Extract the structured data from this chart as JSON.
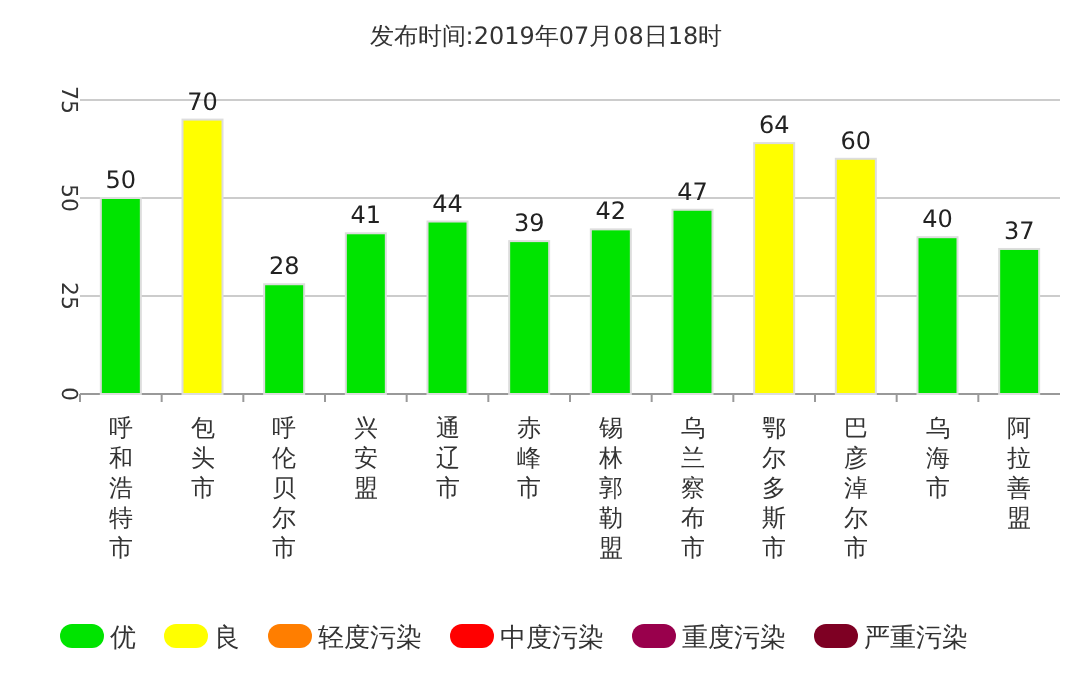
{
  "chart_data": {
    "type": "bar",
    "title": "发布时间:2019年07月08日18时",
    "categories": [
      "呼和浩特市",
      "包头市",
      "呼伦贝尔市",
      "兴安盟",
      "通辽市",
      "赤峰市",
      "锡林郭勒盟",
      "乌兰察布市",
      "鄂尔多斯市",
      "巴彦淖尔市",
      "乌海市",
      "阿拉善盟"
    ],
    "series": [
      {
        "name": "优",
        "color": "#00e400",
        "values": [
          50,
          null,
          28,
          41,
          44,
          39,
          42,
          47,
          null,
          null,
          40,
          37
        ]
      },
      {
        "name": "良",
        "color": "#ffff00",
        "values": [
          null,
          70,
          null,
          null,
          null,
          null,
          null,
          null,
          64,
          60,
          null,
          null
        ]
      },
      {
        "name": "轻度污染",
        "color": "#ff7e00",
        "values": [
          null,
          null,
          null,
          null,
          null,
          null,
          null,
          null,
          null,
          null,
          null,
          null
        ]
      },
      {
        "name": "中度污染",
        "color": "#ff0000",
        "values": [
          null,
          null,
          null,
          null,
          null,
          null,
          null,
          null,
          null,
          null,
          null,
          null
        ]
      },
      {
        "name": "重度污染",
        "color": "#99004c",
        "values": [
          null,
          null,
          null,
          null,
          null,
          null,
          null,
          null,
          null,
          null,
          null,
          null
        ]
      },
      {
        "name": "严重污染",
        "color": "#7e0023",
        "values": [
          null,
          null,
          null,
          null,
          null,
          null,
          null,
          null,
          null,
          null,
          null,
          null
        ]
      }
    ],
    "stacked": true,
    "ylim": [
      0,
      75
    ],
    "yticks": [
      0,
      25,
      50,
      75
    ],
    "grid": "y",
    "data_labels": true,
    "legend": "bottom"
  }
}
